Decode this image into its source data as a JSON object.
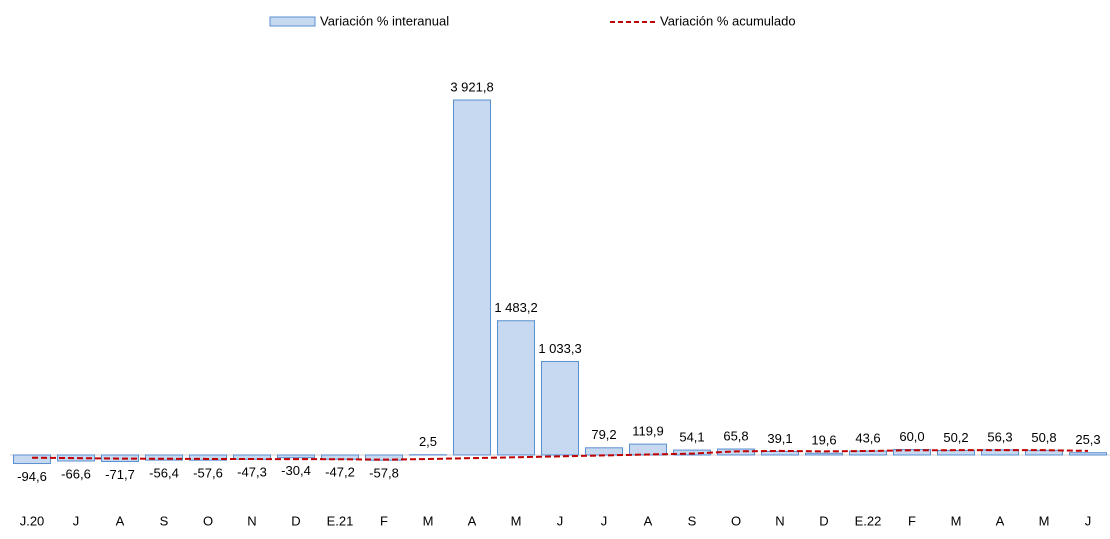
{
  "chart_data": {
    "type": "bar",
    "categories": [
      "J.20",
      "J",
      "A",
      "S",
      "O",
      "N",
      "D",
      "E.21",
      "F",
      "M",
      "A",
      "M",
      "J",
      "J",
      "A",
      "S",
      "O",
      "N",
      "D",
      "E.22",
      "F",
      "M",
      "A",
      "M",
      "J"
    ],
    "series": [
      {
        "name": "Variación % interanual",
        "type": "bar",
        "color": "#c6d9f1",
        "edge_color": "#5b8fd0",
        "values": [
          -94.6,
          -66.6,
          -71.7,
          -56.4,
          -57.6,
          -47.3,
          -30.4,
          -47.2,
          -57.8,
          2.5,
          3921.8,
          1483.2,
          1033.3,
          79.2,
          119.9,
          54.1,
          65.8,
          39.1,
          19.6,
          43.6,
          60.0,
          50.2,
          56.3,
          50.8,
          25.3
        ],
        "value_labels": [
          "-94,6",
          "-66,6",
          "-71,7",
          "-56,4",
          "-57,6",
          "-47,3",
          "-30,4",
          "-47,2",
          "-57,8",
          "2,5",
          "3 921,8",
          "1 483,2",
          "1 033,3",
          "79,2",
          "119,9",
          "54,1",
          "65,8",
          "39,1",
          "19,6",
          "43,6",
          "60,0",
          "50,2",
          "56,3",
          "50,8",
          "25,3"
        ]
      },
      {
        "name": "Variación % acumulado",
        "type": "line",
        "color": "#c00000",
        "dashed": true,
        "values": [
          -30,
          -35,
          -40,
          -42,
          -44,
          -45,
          -46,
          -47,
          -52,
          -45,
          -35,
          -25,
          -15,
          -5,
          5,
          15,
          40,
          45,
          40,
          44,
          52,
          53,
          54,
          53,
          45
        ]
      }
    ],
    "ylim": [
      -387,
      4364
    ]
  }
}
